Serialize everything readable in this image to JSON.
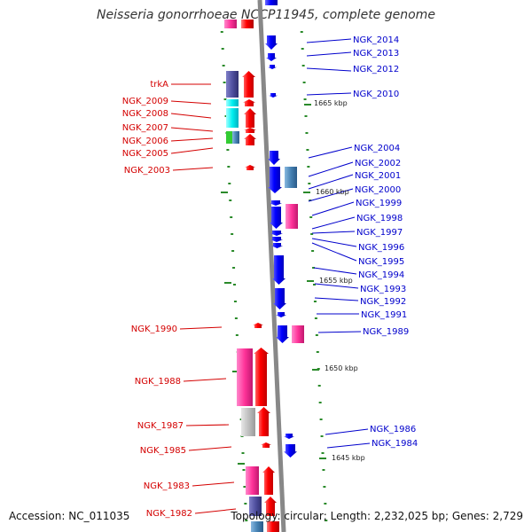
{
  "title": "Neisseria gonorrhoeae NCCP11945, complete genome",
  "footer": {
    "accession": "Accession: NC_011035",
    "topology": "Topology: circular; Length: 2,232,025 bp; Genes: 2,729"
  },
  "colors": {
    "forward_label": "#d40000",
    "reverse_label": "#0000cc",
    "backbone": "#888888",
    "tick": "#2a8a2a",
    "gene_red": "#ff0000",
    "gene_blue": "#0000ff",
    "gene_pink": "#ff3399",
    "gene_cyan": "#00f0f0",
    "gene_purple": "#5050a0",
    "gene_steelblue": "#4682b4",
    "gene_green": "#33cc33",
    "gene_grey": "#c0c0c0"
  },
  "scale_labels": [
    "1665 kbp",
    "1660 kbp",
    "1655 kbp",
    "1650 kbp",
    "1645 kbp"
  ],
  "left_labels": [
    "trkA",
    "NGK_2009",
    "NGK_2008",
    "NGK_2007",
    "NGK_2006",
    "NGK_2005",
    "NGK_2003",
    "NGK_1990",
    "NGK_1988",
    "NGK_1987",
    "NGK_1985",
    "NGK_1983",
    "NGK_1982"
  ],
  "right_labels": [
    "NGK_2014",
    "NGK_2013",
    "NGK_2012",
    "NGK_2010",
    "NGK_2004",
    "NGK_2002",
    "NGK_2001",
    "NGK_2000",
    "NGK_1999",
    "NGK_1998",
    "NGK_1997",
    "NGK_1996",
    "NGK_1995",
    "NGK_1994",
    "NGK_1993",
    "NGK_1992",
    "NGK_1991",
    "NGK_1989",
    "NGK_1986",
    "NGK_1984"
  ]
}
